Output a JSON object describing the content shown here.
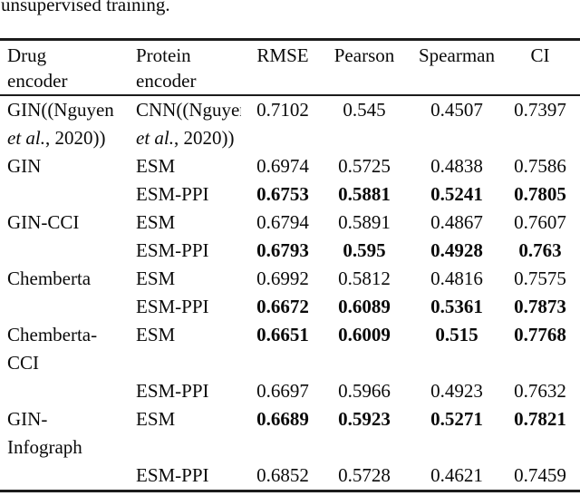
{
  "caption": "unsupervised training.",
  "colors": {
    "text": "#0a0a0a",
    "rule": "#1c1c1c",
    "background": "#ffffff"
  },
  "table": {
    "headers": [
      "Drug\nencoder",
      "Protein\nencoder",
      "RMSE",
      "Pearson",
      "Spearman",
      "CI"
    ],
    "rows": [
      {
        "cells": [
          [
            {
              "text": "GIN((Nguyen\n"
            },
            {
              "text": "et al.",
              "italic": true
            },
            {
              "text": ", 2020))"
            }
          ],
          [
            {
              "text": "CNN((Nguyen\n"
            },
            {
              "text": "et al.",
              "italic": true
            },
            {
              "text": ", 2020))"
            }
          ],
          "0.7102",
          "0.545",
          "0.4507",
          "0.7397"
        ],
        "bold_values": false
      },
      {
        "cells": [
          "GIN",
          "ESM",
          "0.6974",
          "0.5725",
          "0.4838",
          "0.7586"
        ],
        "bold_values": false
      },
      {
        "cells": [
          "",
          "ESM-PPI",
          "0.6753",
          "0.5881",
          "0.5241",
          "0.7805"
        ],
        "bold_values": true
      },
      {
        "cells": [
          "GIN-CCI",
          "ESM",
          "0.6794",
          "0.5891",
          "0.4867",
          "0.7607"
        ],
        "bold_values": false
      },
      {
        "cells": [
          "",
          "ESM-PPI",
          "0.6793",
          "0.595",
          "0.4928",
          "0.763"
        ],
        "bold_values": true
      },
      {
        "cells": [
          "Chemberta",
          "ESM",
          "0.6992",
          "0.5812",
          "0.4816",
          "0.7575"
        ],
        "bold_values": false
      },
      {
        "cells": [
          "",
          "ESM-PPI",
          "0.6672",
          "0.6089",
          "0.5361",
          "0.7873"
        ],
        "bold_values": true
      },
      {
        "cells": [
          "Chemberta-\nCCI",
          "ESM",
          "0.6651",
          "0.6009",
          "0.515",
          "0.7768"
        ],
        "bold_values": true
      },
      {
        "cells": [
          "",
          "ESM-PPI",
          "0.6697",
          "0.5966",
          "0.4923",
          "0.7632"
        ],
        "bold_values": false
      },
      {
        "cells": [
          "GIN-\nInfograph",
          "ESM",
          "0.6689",
          "0.5923",
          "0.5271",
          "0.7821"
        ],
        "bold_values": true
      },
      {
        "cells": [
          "",
          "ESM-PPI",
          "0.6852",
          "0.5728",
          "0.4621",
          "0.7459"
        ],
        "bold_values": false
      }
    ]
  }
}
